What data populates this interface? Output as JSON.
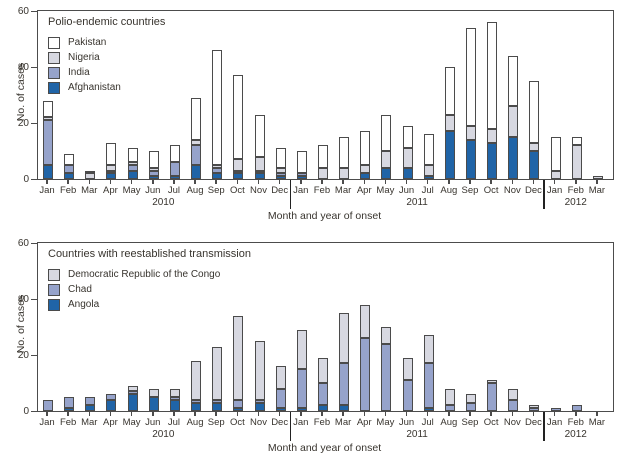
{
  "chart_data": [
    {
      "type": "bar",
      "stacked": true,
      "title": "Polio-endemic countries",
      "ylabel": "No. of cases",
      "xlabel": "Month and year of onset",
      "ylim": [
        0,
        60
      ],
      "yticks": [
        0,
        20,
        40,
        60
      ],
      "grid": false,
      "legend_position": "top-left-inside",
      "categories": [
        "Jan",
        "Feb",
        "Mar",
        "Apr",
        "May",
        "Jun",
        "Jul",
        "Aug",
        "Sep",
        "Oct",
        "Nov",
        "Dec",
        "Jan",
        "Feb",
        "Mar",
        "Apr",
        "May",
        "Jun",
        "Jul",
        "Aug",
        "Sep",
        "Oct",
        "Nov",
        "Dec",
        "Jan",
        "Feb",
        "Mar"
      ],
      "years": [
        {
          "label": "2010",
          "start": 0,
          "end": 11
        },
        {
          "label": "2011",
          "start": 12,
          "end": 23
        },
        {
          "label": "2012",
          "start": 24,
          "end": 26
        }
      ],
      "series": [
        {
          "name": "Afghanistan",
          "color": "#2064a7",
          "values": [
            5,
            2,
            0,
            2,
            3,
            1,
            1,
            5,
            2,
            2,
            2,
            1,
            1,
            0,
            0,
            2,
            4,
            4,
            1,
            17,
            14,
            13,
            15,
            10,
            0,
            0,
            0
          ]
        },
        {
          "name": "India",
          "color": "#96a3cb",
          "values": [
            16,
            3,
            0,
            1,
            2,
            2,
            5,
            7,
            2,
            1,
            1,
            1,
            1,
            0,
            0,
            0,
            0,
            0,
            0,
            0,
            0,
            0,
            0,
            0,
            0,
            0,
            0
          ]
        },
        {
          "name": "Nigeria",
          "color": "#d7d8e1",
          "values": [
            1,
            0,
            2,
            2,
            1,
            1,
            0,
            2,
            1,
            4,
            5,
            2,
            0,
            4,
            4,
            3,
            6,
            7,
            4,
            6,
            5,
            5,
            11,
            3,
            3,
            12,
            1
          ]
        },
        {
          "name": "Pakistan",
          "color": "#ffffff",
          "values": [
            6,
            4,
            1,
            8,
            5,
            6,
            6,
            15,
            41,
            30,
            15,
            7,
            8,
            8,
            11,
            12,
            13,
            8,
            11,
            17,
            35,
            38,
            18,
            22,
            12,
            3,
            0
          ]
        }
      ],
      "legend_order": [
        "Pakistan",
        "Nigeria",
        "India",
        "Afghanistan"
      ]
    },
    {
      "type": "bar",
      "stacked": true,
      "title": "Countries with reestablished transmission",
      "ylabel": "No. of cases",
      "xlabel": "Month and year of onset",
      "ylim": [
        0,
        60
      ],
      "yticks": [
        0,
        20,
        40,
        60
      ],
      "grid": false,
      "legend_position": "top-left-inside",
      "categories": [
        "Jan",
        "Feb",
        "Mar",
        "Apr",
        "May",
        "Jun",
        "Jul",
        "Aug",
        "Sep",
        "Oct",
        "Nov",
        "Dec",
        "Jan",
        "Feb",
        "Mar",
        "Apr",
        "May",
        "Jun",
        "Jul",
        "Aug",
        "Sep",
        "Oct",
        "Nov",
        "Dec",
        "Jan",
        "Feb",
        "Mar"
      ],
      "years": [
        {
          "label": "2010",
          "start": 0,
          "end": 11
        },
        {
          "label": "2011",
          "start": 12,
          "end": 23
        },
        {
          "label": "2012",
          "start": 24,
          "end": 26
        }
      ],
      "series": [
        {
          "name": "Angola",
          "color": "#2064a7",
          "values": [
            0,
            1,
            2,
            4,
            6,
            5,
            4,
            3,
            3,
            1,
            3,
            1,
            1,
            2,
            2,
            0,
            0,
            0,
            1,
            0,
            0,
            0,
            0,
            0,
            0,
            0,
            0
          ]
        },
        {
          "name": "Chad",
          "color": "#96a3cb",
          "values": [
            4,
            4,
            3,
            2,
            1,
            0,
            1,
            1,
            1,
            3,
            1,
            7,
            14,
            8,
            15,
            26,
            24,
            11,
            16,
            2,
            3,
            10,
            4,
            1,
            1,
            2,
            0
          ]
        },
        {
          "name": "Democratic Republic of the Congo",
          "color": "#d7d8e1",
          "values": [
            0,
            0,
            0,
            0,
            2,
            3,
            3,
            14,
            19,
            30,
            21,
            8,
            14,
            9,
            18,
            12,
            6,
            8,
            10,
            6,
            3,
            1,
            4,
            1,
            0,
            0,
            0
          ]
        }
      ],
      "legend_order": [
        "Democratic Republic of the Congo",
        "Chad",
        "Angola"
      ]
    }
  ]
}
